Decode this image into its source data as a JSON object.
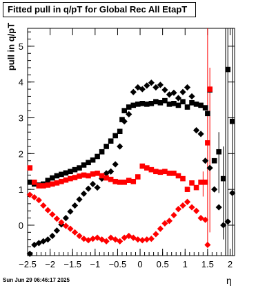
{
  "chart_data": {
    "type": "scatter",
    "title": "Fitted pull in q/pT for Global Rec All EtapT",
    "xlabel": "η",
    "ylabel": "pull in q/pT",
    "xlim": [
      -2.5,
      2.1
    ],
    "ylim": [
      -0.85,
      5.5
    ],
    "x_ticks": [
      -2.5,
      -2,
      -1.5,
      -1,
      -0.5,
      0,
      0.5,
      1,
      1.5,
      2
    ],
    "x_tick_labels": [
      "−2.5",
      "−2",
      "−1.5",
      "−1",
      "−0.5",
      "0",
      "0.5",
      "1",
      "1.5",
      "2"
    ],
    "y_ticks": [
      0,
      1,
      2,
      3,
      4,
      5
    ],
    "y_tick_labels": [
      "0",
      "1",
      "2",
      "3",
      "4",
      "5"
    ],
    "colors": {
      "black": "#000000",
      "red": "#ff0000"
    },
    "series": [
      {
        "marker": "square",
        "color": "#000000",
        "x": [
          -2.45,
          -2.35,
          -2.25,
          -2.15,
          -2.05,
          -1.95,
          -1.85,
          -1.75,
          -1.65,
          -1.55,
          -1.45,
          -1.35,
          -1.25,
          -1.15,
          -1.05,
          -0.95,
          -0.85,
          -0.75,
          -0.65,
          -0.55,
          -0.45,
          -0.4,
          -0.35,
          -0.25,
          -0.15,
          -0.05,
          0.05,
          0.15,
          0.25,
          0.35,
          0.45,
          0.55,
          0.65,
          0.75,
          0.85,
          0.95,
          1.05,
          1.15,
          1.25,
          1.35,
          1.45,
          1.5,
          1.55,
          1.65,
          1.75,
          1.85,
          1.95,
          2.05
        ],
        "y": [
          1.2,
          1.15,
          1.12,
          1.15,
          1.25,
          1.32,
          1.38,
          1.42,
          1.46,
          1.5,
          1.55,
          1.6,
          1.68,
          1.75,
          1.82,
          1.92,
          2.05,
          2.2,
          2.35,
          2.5,
          2.62,
          2.95,
          3.2,
          3.3,
          3.35,
          3.38,
          3.4,
          3.38,
          3.4,
          3.45,
          3.42,
          3.48,
          3.38,
          3.4,
          3.35,
          3.45,
          3.3,
          3.42,
          3.38,
          3.35,
          3.28,
          3.12,
          3.78,
          1.8,
          2.05,
          1.3,
          4.35,
          2.9
        ]
      },
      {
        "marker": "diamond",
        "color": "#000000",
        "x": [
          -2.45,
          -2.35,
          -2.25,
          -2.15,
          -2.05,
          -1.95,
          -1.85,
          -1.75,
          -1.65,
          -1.55,
          -1.45,
          -1.35,
          -1.25,
          -1.15,
          -1.05,
          -0.95,
          -0.85,
          -0.75,
          -0.65,
          -0.55,
          -0.45,
          -0.35,
          -0.25,
          -0.15,
          -0.05,
          0.05,
          0.15,
          0.25,
          0.35,
          0.45,
          0.55,
          0.65,
          0.75,
          0.85,
          0.95,
          1.05,
          1.15,
          1.25,
          1.35,
          1.45,
          1.55,
          1.65,
          1.75,
          1.85,
          1.95,
          2.05
        ],
        "y": [
          -0.8,
          -0.55,
          -0.5,
          -0.45,
          -0.4,
          -0.3,
          -0.15,
          0.02,
          0.2,
          0.38,
          0.55,
          0.72,
          0.88,
          1.02,
          1.15,
          1.05,
          1.3,
          1.45,
          1.5,
          1.7,
          2.2,
          2.9,
          3.1,
          3.72,
          3.85,
          3.8,
          3.9,
          3.98,
          3.85,
          3.92,
          3.78,
          3.65,
          3.7,
          3.55,
          3.72,
          3.85,
          3.6,
          2.65,
          2.55,
          1.8,
          1.6,
          1.0,
          0.5,
          0.0,
          0.1,
          0.9
        ]
      },
      {
        "marker": "square",
        "color": "#ff0000",
        "x": [
          -2.45,
          -2.35,
          -2.25,
          -2.15,
          -2.05,
          -1.95,
          -1.85,
          -1.75,
          -1.65,
          -1.55,
          -1.45,
          -1.35,
          -1.25,
          -1.15,
          -1.05,
          -0.95,
          -0.85,
          -0.75,
          -0.65,
          -0.55,
          -0.45,
          -0.35,
          -0.25,
          -0.15,
          -0.05,
          0.05,
          0.15,
          0.25,
          0.35,
          0.45,
          0.55,
          0.65,
          0.75,
          0.85,
          0.95,
          1.05,
          1.15,
          1.25,
          1.35,
          1.45,
          1.5,
          1.55
        ],
        "y": [
          1.6,
          1.2,
          1.1,
          1.1,
          1.12,
          1.15,
          1.18,
          1.22,
          1.26,
          1.3,
          1.33,
          1.37,
          1.4,
          1.38,
          1.43,
          1.45,
          1.38,
          1.32,
          1.28,
          1.22,
          1.2,
          1.2,
          1.25,
          1.22,
          1.35,
          1.65,
          1.6,
          1.55,
          1.5,
          1.48,
          1.5,
          1.45,
          1.45,
          1.38,
          1.3,
          1.0,
          1.18,
          1.05,
          1.2,
          1.2,
          2.3,
          3.8
        ]
      },
      {
        "marker": "diamond",
        "color": "#ff0000",
        "x": [
          -2.45,
          -2.35,
          -2.25,
          -2.15,
          -2.05,
          -1.95,
          -1.85,
          -1.75,
          -1.65,
          -1.55,
          -1.45,
          -1.35,
          -1.25,
          -1.15,
          -1.05,
          -0.95,
          -0.85,
          -0.75,
          -0.65,
          -0.55,
          -0.45,
          -0.35,
          -0.25,
          -0.15,
          -0.05,
          0.05,
          0.15,
          0.25,
          0.35,
          0.45,
          0.55,
          0.65,
          0.75,
          0.85,
          0.95,
          1.05,
          1.15,
          1.25,
          1.35,
          1.45,
          1.5
        ],
        "y": [
          0.85,
          0.78,
          0.7,
          0.55,
          0.42,
          0.3,
          0.18,
          0.08,
          -0.02,
          -0.1,
          -0.2,
          -0.3,
          -0.38,
          -0.42,
          -0.38,
          -0.35,
          -0.4,
          -0.45,
          -0.35,
          -0.4,
          -0.45,
          -0.35,
          -0.3,
          -0.35,
          -0.4,
          -0.42,
          -0.4,
          -0.38,
          -0.25,
          -0.1,
          0.05,
          0.12,
          0.28,
          0.45,
          0.55,
          0.65,
          0.5,
          0.4,
          0.2,
          0.15,
          -0.55
        ]
      }
    ],
    "error_bars": [
      {
        "color": "#ff0000",
        "x": 1.5,
        "y_low": -0.6,
        "y_high": 5.55
      },
      {
        "color": "#ff0000",
        "x": 1.55,
        "y_low": -0.2,
        "y_high": 4.4
      },
      {
        "color": "#ff0000",
        "x": 1.4,
        "y_low": 0.8,
        "y_high": 1.5
      },
      {
        "color": "#000000",
        "x": 1.9,
        "y_low": -0.85,
        "y_high": 5.5
      },
      {
        "color": "#000000",
        "x": 1.95,
        "y_low": -0.85,
        "y_high": 5.5
      },
      {
        "color": "#000000",
        "x": 2.05,
        "y_low": -0.85,
        "y_high": 5.5
      },
      {
        "color": "#000000",
        "x": 1.85,
        "y_low": -0.4,
        "y_high": 2.2
      },
      {
        "color": "#000000",
        "x": 1.75,
        "y_low": 0.9,
        "y_high": 2.6
      }
    ]
  },
  "footer": {
    "timestamp": "Sun Jun 29 06:46:17 2025"
  }
}
